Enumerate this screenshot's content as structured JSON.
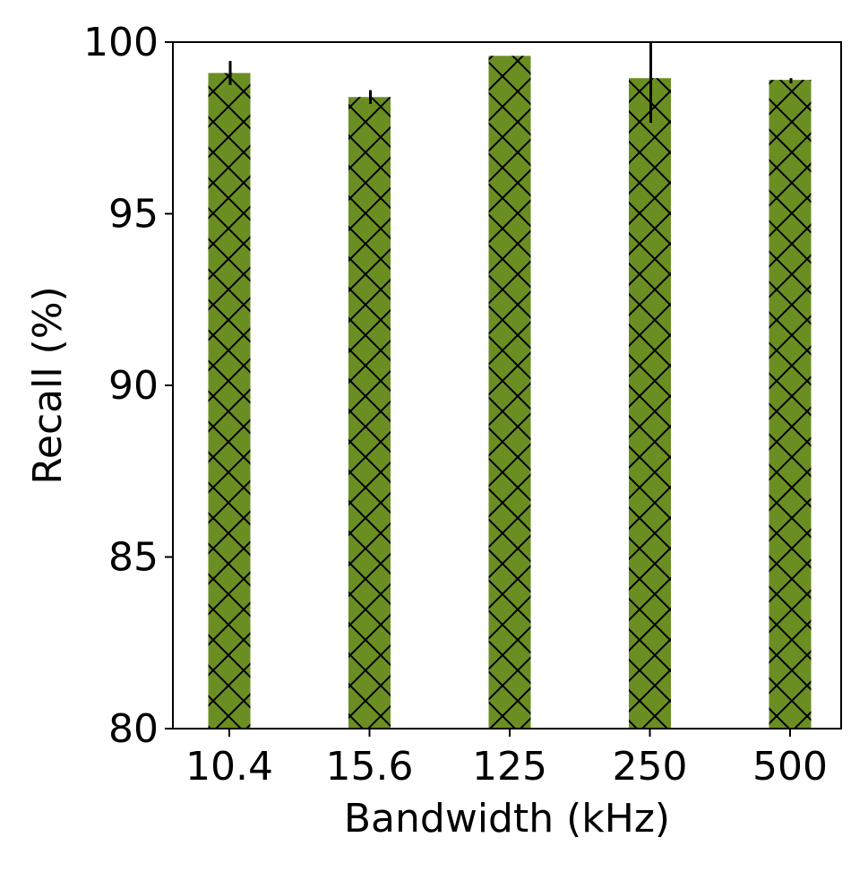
{
  "chart_data": {
    "type": "bar",
    "title": "",
    "xlabel": "Bandwidth (kHz)",
    "ylabel": "Recall (%)",
    "ylim": [
      80,
      100
    ],
    "yticks": [
      80,
      85,
      90,
      95,
      100
    ],
    "categories": [
      "10.4",
      "15.6",
      "125",
      "250",
      "500"
    ],
    "values": [
      99.1,
      98.4,
      99.6,
      98.95,
      98.9
    ],
    "errors": [
      [
        98.75,
        99.45
      ],
      [
        98.2,
        98.6
      ],
      [
        99.6,
        99.6
      ],
      [
        97.65,
        100.0
      ],
      [
        98.8,
        98.95
      ]
    ],
    "bar_color": "#6b8e23",
    "hatch": "cross",
    "grid": false,
    "legend": "none"
  }
}
